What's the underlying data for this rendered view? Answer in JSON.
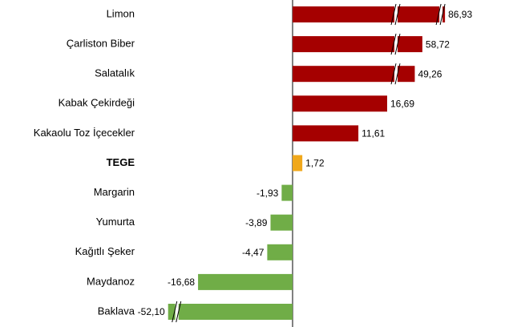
{
  "chart_data": {
    "type": "bar",
    "orientation": "horizontal",
    "categories": [
      "Limon",
      "Çarliston Biber",
      "Salatalık",
      "Kabak Çekirdeği",
      "Kakaolu Toz İçecekler",
      "TEGE",
      "Margarin",
      "Yumurta",
      "Kağıtlı Şeker",
      "Maydanoz",
      "Baklava"
    ],
    "values": [
      86.93,
      58.72,
      49.26,
      16.69,
      11.61,
      1.72,
      -1.93,
      -3.89,
      -4.47,
      -16.68,
      -52.1
    ],
    "value_labels": [
      "86,93",
      "58,72",
      "49,26",
      "16,69",
      "11,61",
      "1,72",
      "-1,93",
      "-3,89",
      "-4,47",
      "-16,68",
      "-52,10"
    ],
    "colors": [
      "#a50000",
      "#a50000",
      "#a50000",
      "#a50000",
      "#a50000",
      "#f0a81c",
      "#70ad47",
      "#70ad47",
      "#70ad47",
      "#70ad47",
      "#70ad47"
    ],
    "bold_categories": [
      5
    ],
    "axis_break": true
  }
}
